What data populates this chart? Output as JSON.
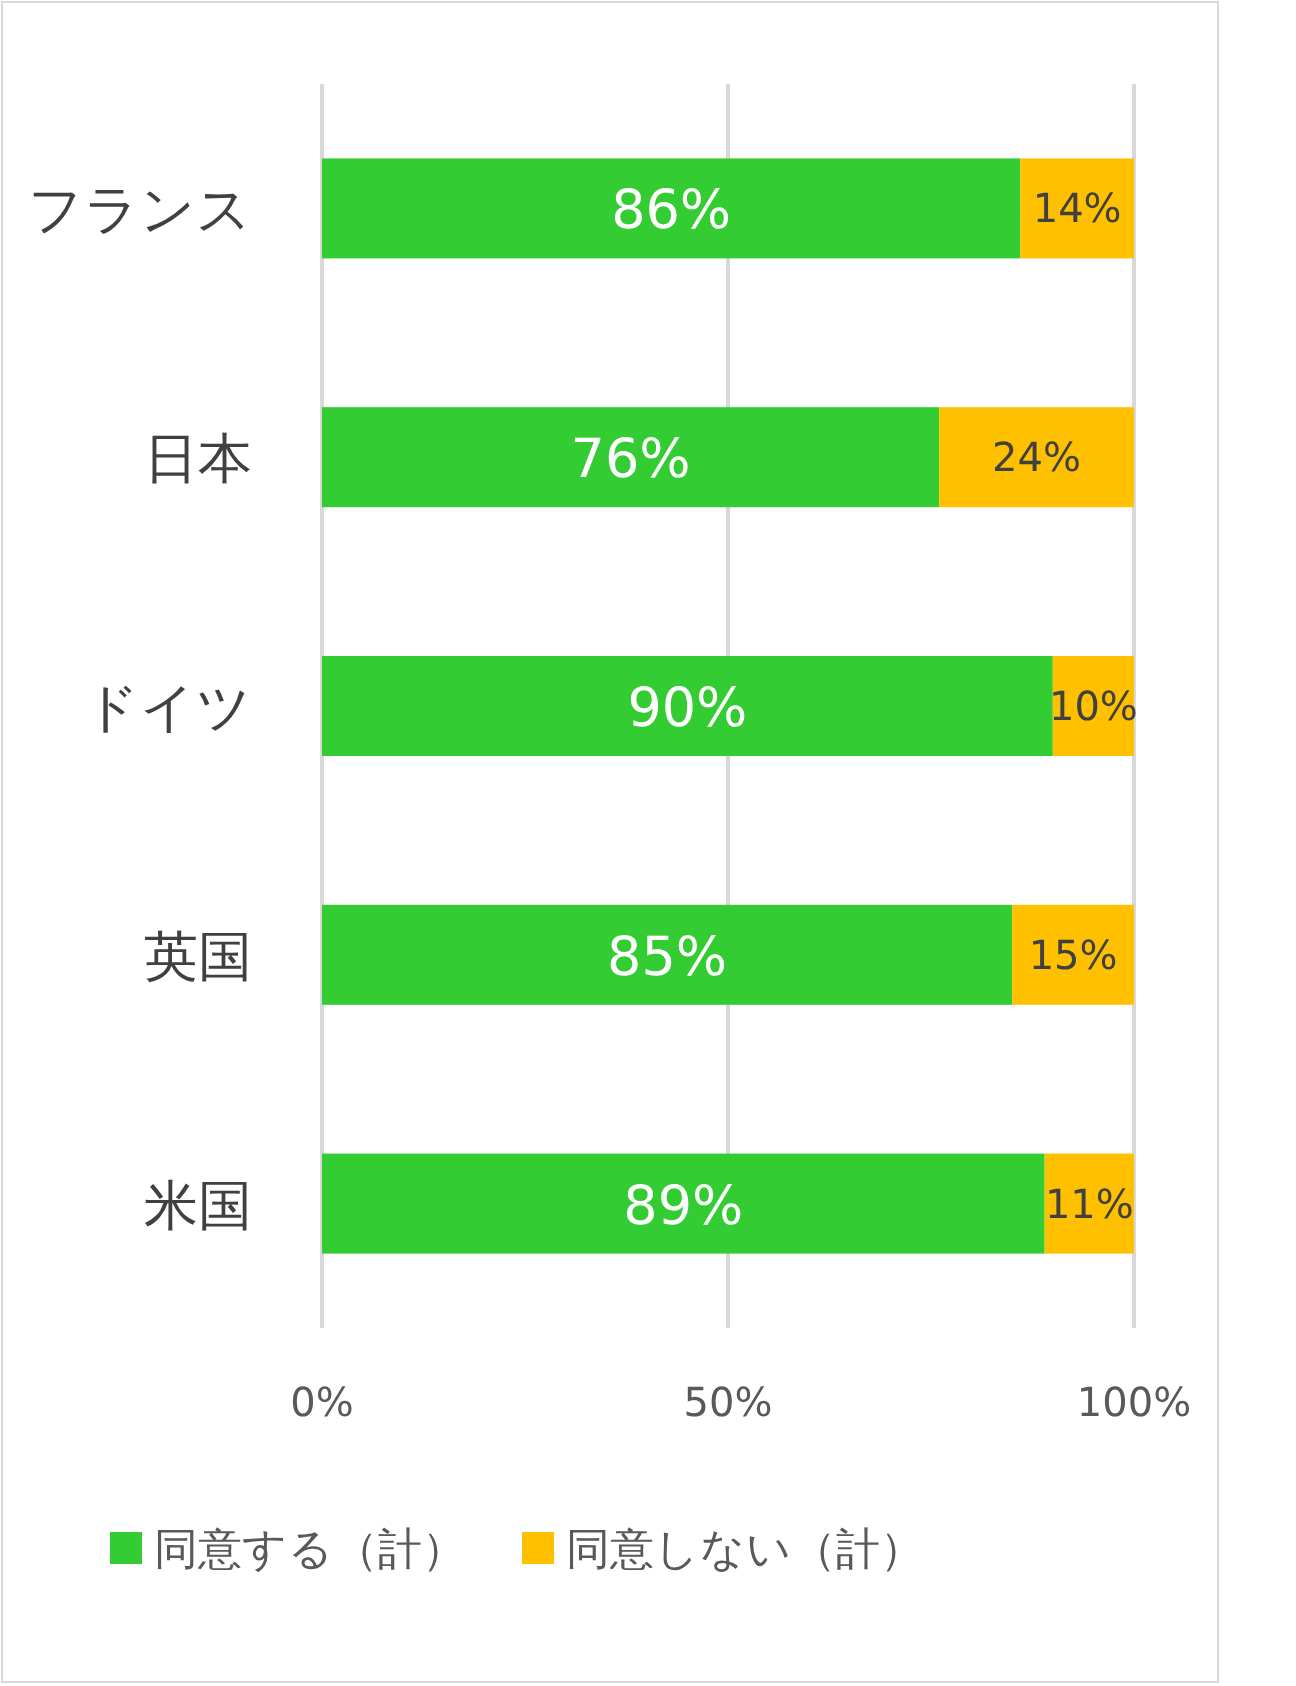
{
  "chart_data": {
    "type": "bar",
    "orientation": "horizontal",
    "stacked": true,
    "categories": [
      "フランス",
      "日本",
      "ドイツ",
      "英国",
      "米国"
    ],
    "series": [
      {
        "name": "同意する（計）",
        "color": "#33cc33",
        "values": [
          86,
          76,
          90,
          85,
          89
        ],
        "value_labels": [
          "86%",
          "76%",
          "90%",
          "85%",
          "89%"
        ]
      },
      {
        "name": "同意しない（計）",
        "color": "#ffc000",
        "values": [
          14,
          24,
          10,
          15,
          11
        ],
        "value_labels": [
          "14%",
          "24%",
          "10%",
          "15%",
          "11%"
        ]
      }
    ],
    "xlim": [
      0,
      100
    ],
    "xticks": [
      {
        "value": 0,
        "label": "0%"
      },
      {
        "value": 50,
        "label": "50%"
      },
      {
        "value": 100,
        "label": "100%"
      }
    ],
    "grid": "x",
    "legend": "bottom"
  }
}
